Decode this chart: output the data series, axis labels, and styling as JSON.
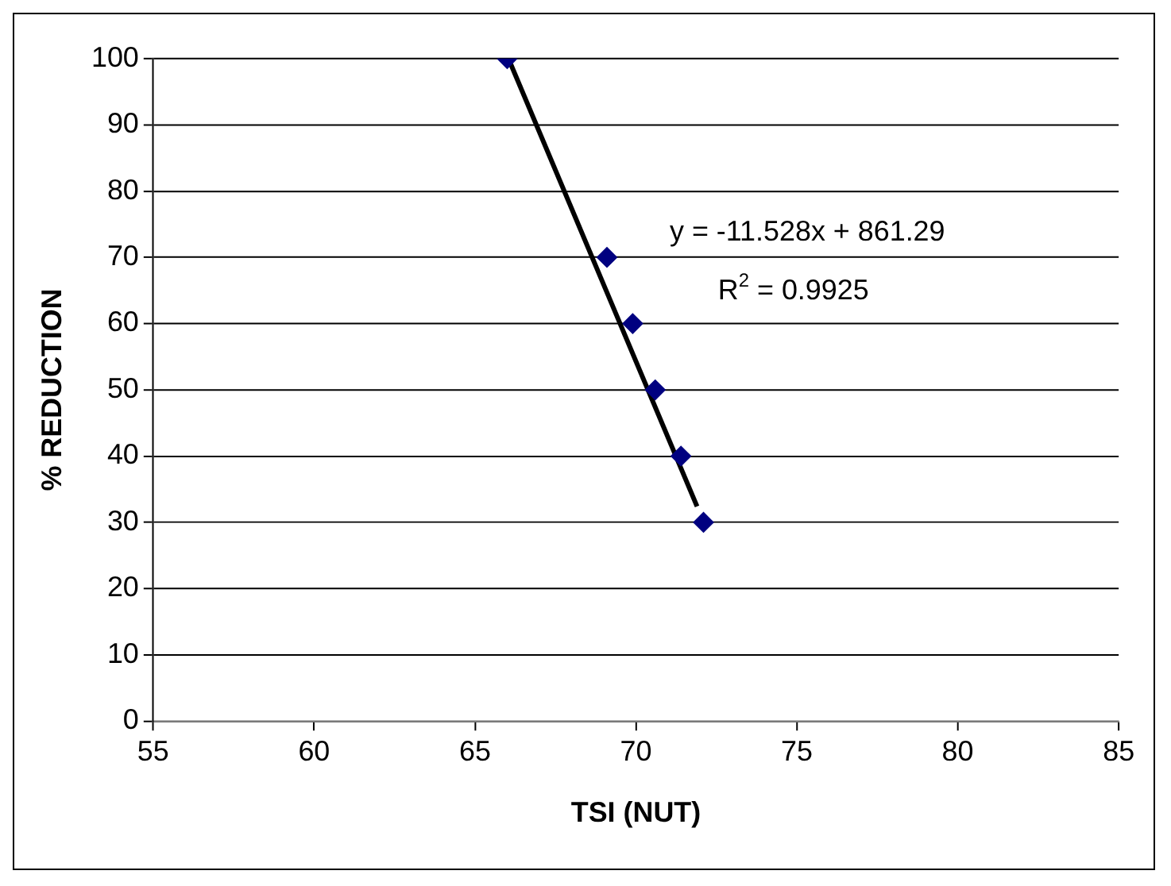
{
  "chart_data": {
    "type": "scatter",
    "xlabel": "TSI (NUT)",
    "ylabel": "% REDUCTION",
    "xlim": [
      55,
      85
    ],
    "xticks": [
      55,
      60,
      65,
      70,
      75,
      80,
      85
    ],
    "ylim": [
      0,
      100
    ],
    "yticks": [
      0,
      10,
      20,
      30,
      40,
      50,
      60,
      70,
      80,
      90,
      100
    ],
    "grid": "y",
    "legend": false,
    "series": [
      {
        "marker": "diamond",
        "color": "#000080",
        "x": [
          66,
          69.1,
          69.9,
          70.6,
          71.4,
          72.1
        ],
        "values": [
          100,
          70,
          60,
          50,
          40,
          30
        ]
      },
      {
        "type": "line",
        "marker": "none",
        "color": "#000000",
        "x": [
          66.04,
          71.9
        ],
        "values": [
          100,
          32.4
        ]
      }
    ],
    "annotations": [
      "y = -11.528x + 861.29",
      "R$^{2}$ = 0.9925"
    ]
  }
}
